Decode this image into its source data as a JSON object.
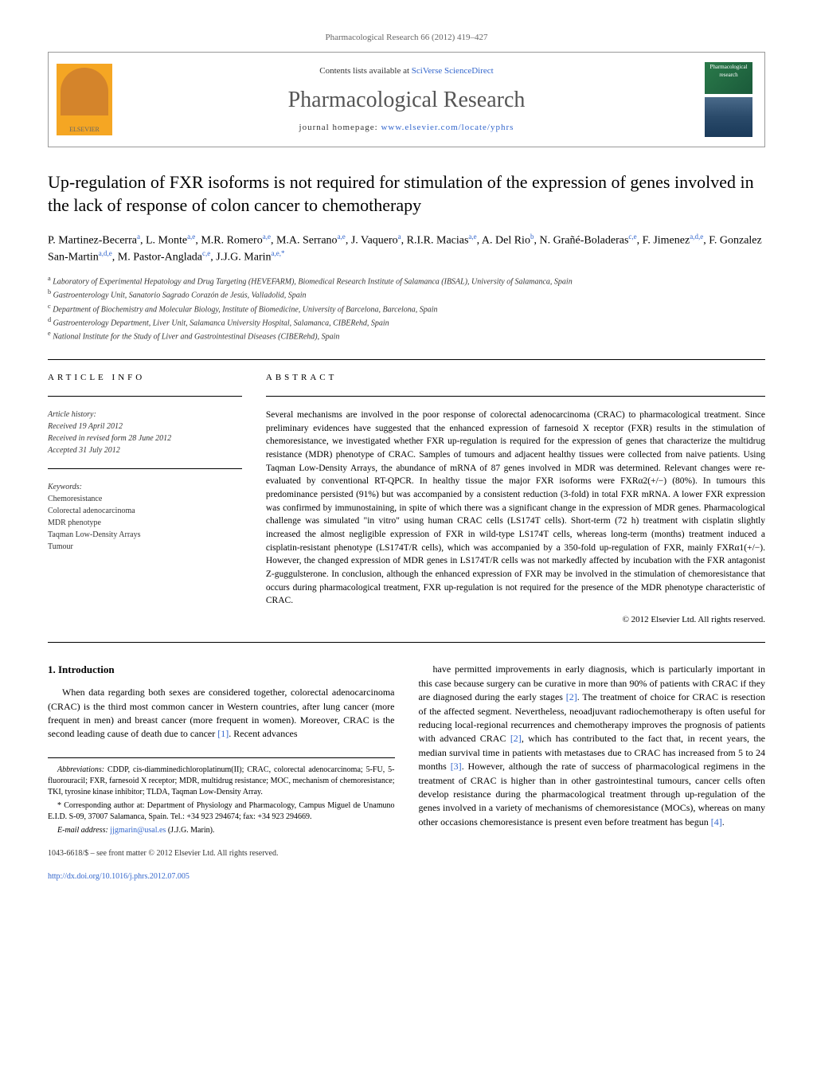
{
  "header": {
    "citation": "Pharmacological Research 66 (2012) 419–427",
    "contents": "Contents lists available at ",
    "sciencedirect": "SciVerse ScienceDirect",
    "journal": "Pharmacological Research",
    "homepage_prefix": "journal homepage: ",
    "homepage_url": "www.elsevier.com/locate/yphrs",
    "elsevier": "ELSEVIER",
    "cover_label": "Pharmacological research"
  },
  "title": "Up-regulation of FXR isoforms is not required for stimulation of the expression of genes involved in the lack of response of colon cancer to chemotherapy",
  "authors_html": "P. Martinez-Becerra<sup>a</sup>, L. Monte<sup>a,e</sup>, M.R. Romero<sup>a,e</sup>, M.A. Serrano<sup>a,e</sup>, J. Vaquero<sup>a</sup>, R.I.R. Macias<sup>a,e</sup>, A. Del Rio<sup>b</sup>, N. Grañé-Boladeras<sup>c,e</sup>, F. Jimenez<sup>a,d,e</sup>, F. Gonzalez San-Martin<sup>a,d,e</sup>, M. Pastor-Anglada<sup>c,e</sup>, J.J.G. Marin<sup>a,e,*</sup>",
  "affiliations": [
    {
      "sup": "a",
      "text": "Laboratory of Experimental Hepatology and Drug Targeting (HEVEFARM), Biomedical Research Institute of Salamanca (IBSAL), University of Salamanca, Spain"
    },
    {
      "sup": "b",
      "text": "Gastroenterology Unit, Sanatorio Sagrado Corazón de Jesús, Valladolid, Spain"
    },
    {
      "sup": "c",
      "text": "Department of Biochemistry and Molecular Biology, Institute of Biomedicine, University of Barcelona, Barcelona, Spain"
    },
    {
      "sup": "d",
      "text": "Gastroenterology Department, Liver Unit, Salamanca University Hospital, Salamanca, CIBERehd, Spain"
    },
    {
      "sup": "e",
      "text": "National Institute for the Study of Liver and Gastrointestinal Diseases (CIBERehd), Spain"
    }
  ],
  "article_info": {
    "label": "ARTICLE INFO",
    "history_label": "Article history:",
    "received": "Received 19 April 2012",
    "revised": "Received in revised form 28 June 2012",
    "accepted": "Accepted 31 July 2012",
    "keywords_label": "Keywords:",
    "keywords": [
      "Chemoresistance",
      "Colorectal adenocarcinoma",
      "MDR phenotype",
      "Taqman Low-Density Arrays",
      "Tumour"
    ]
  },
  "abstract": {
    "label": "ABSTRACT",
    "text": "Several mechanisms are involved in the poor response of colorectal adenocarcinoma (CRAC) to pharmacological treatment. Since preliminary evidences have suggested that the enhanced expression of farnesoid X receptor (FXR) results in the stimulation of chemoresistance, we investigated whether FXR up-regulation is required for the expression of genes that characterize the multidrug resistance (MDR) phenotype of CRAC. Samples of tumours and adjacent healthy tissues were collected from naive patients. Using Taqman Low-Density Arrays, the abundance of mRNA of 87 genes involved in MDR was determined. Relevant changes were re-evaluated by conventional RT-QPCR. In healthy tissue the major FXR isoforms were FXRα2(+/−) (80%). In tumours this predominance persisted (91%) but was accompanied by a consistent reduction (3-fold) in total FXR mRNA. A lower FXR expression was confirmed by immunostaining, in spite of which there was a significant change in the expression of MDR genes. Pharmacological challenge was simulated \"in vitro\" using human CRAC cells (LS174T cells). Short-term (72 h) treatment with cisplatin slightly increased the almost negligible expression of FXR in wild-type LS174T cells, whereas long-term (months) treatment induced a cisplatin-resistant phenotype (LS174T/R cells), which was accompanied by a 350-fold up-regulation of FXR, mainly FXRα1(+/−). However, the changed expression of MDR genes in LS174T/R cells was not markedly affected by incubation with the FXR antagonist Z-guggulsterone. In conclusion, although the enhanced expression of FXR may be involved in the stimulation of chemoresistance that occurs during pharmacological treatment, FXR up-regulation is not required for the presence of the MDR phenotype characteristic of CRAC.",
    "copyright": "© 2012 Elsevier Ltd. All rights reserved."
  },
  "intro": {
    "heading": "1. Introduction",
    "para1": "When data regarding both sexes are considered together, colorectal adenocarcinoma (CRAC) is the third most common cancer in Western countries, after lung cancer (more frequent in men) and breast cancer (more frequent in women). Moreover, CRAC is the second leading cause of death due to cancer ",
    "ref1": "[1]",
    "para1b": ". Recent advances",
    "para2a": "have permitted improvements in early diagnosis, which is particularly important in this case because surgery can be curative in more than 90% of patients with CRAC if they are diagnosed during the early stages ",
    "ref2": "[2]",
    "para2b": ". The treatment of choice for CRAC is resection of the affected segment. Nevertheless, neoadjuvant radiochemotherapy is often useful for reducing local-regional recurrences and chemotherapy improves the prognosis of patients with advanced CRAC ",
    "ref2b": "[2]",
    "para2c": ", which has contributed to the fact that, in recent years, the median survival time in patients with metastases due to CRAC has increased from 5 to 24 months ",
    "ref3": "[3]",
    "para2d": ". However, although the rate of success of pharmacological regimens in the treatment of CRAC is higher than in other gastrointestinal tumours, cancer cells often develop resistance during the pharmacological treatment through up-regulation of the genes involved in a variety of mechanisms of chemoresistance (MOCs), whereas on many other occasions chemoresistance is present even before treatment has begun ",
    "ref4": "[4]",
    "para2e": "."
  },
  "footnotes": {
    "abbrev_label": "Abbreviations:",
    "abbrev": " CDDP, cis-diamminedichloroplatinum(II); CRAC, colorectal adenocarcinoma; 5-FU, 5-fluorouracil; FXR, farnesoid X receptor; MDR, multidrug resistance; MOC, mechanism of chemoresistance; TKI, tyrosine kinase inhibitor; TLDA, Taqman Low-Density Array.",
    "corr_label": "* Corresponding author at:",
    "corr": " Department of Physiology and Pharmacology, Campus Miguel de Unamuno E.I.D. S-09, 37007 Salamanca, Spain. Tel.: +34 923 294674; fax: +34 923 294669.",
    "email_label": "E-mail address:",
    "email": "jjgmarin@usal.es",
    "email_suffix": " (J.J.G. Marin)."
  },
  "footer": {
    "issn": "1043-6618/$ – see front matter © 2012 Elsevier Ltd. All rights reserved.",
    "doi": "http://dx.doi.org/10.1016/j.phrs.2012.07.005"
  },
  "colors": {
    "link": "#3366cc",
    "text": "#000000",
    "muted": "#666666"
  }
}
